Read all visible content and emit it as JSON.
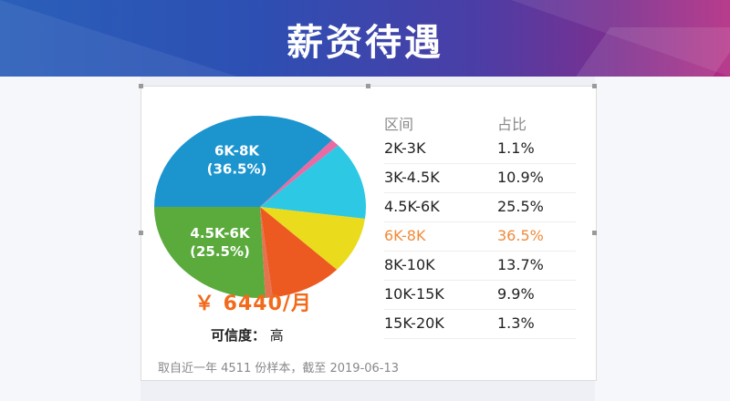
{
  "banner": {
    "title": "薪资待遇"
  },
  "salary": {
    "amount": "￥ 6440/月"
  },
  "credibility": {
    "label": "可信度：",
    "value": "高"
  },
  "footnote": "取自近一年 4511 份样本，截至 2019-06-13",
  "table": {
    "headers": {
      "range": "区间",
      "share": "占比"
    },
    "highlight_color": "#f08a3a"
  },
  "chart_data": {
    "type": "pie",
    "title": "",
    "slices": [
      {
        "label": "2K-3K",
        "value": 1.1,
        "percent_text": "1.1%",
        "color": "#e5734f"
      },
      {
        "label": "3K-4.5K",
        "value": 10.9,
        "percent_text": "10.9%",
        "color": "#ec5a22"
      },
      {
        "label": "4.5K-6K",
        "value": 25.5,
        "percent_text": "25.5%",
        "color": "#5aaa3c",
        "pie_label": [
          "4.5K-6K",
          "(25.5%)"
        ]
      },
      {
        "label": "6K-8K",
        "value": 36.5,
        "percent_text": "36.5%",
        "color": "#1c95cf",
        "pie_label": [
          "6K-8K",
          "(36.5%)"
        ],
        "highlight": true
      },
      {
        "label": "8K-10K",
        "value": 13.7,
        "percent_text": "13.7%",
        "color": "#2cc8e4"
      },
      {
        "label": "10K-15K",
        "value": 9.9,
        "percent_text": "9.9%",
        "color": "#eadb1d"
      },
      {
        "label": "15K-20K",
        "value": 1.3,
        "percent_text": "1.3%",
        "color": "#ea6aa3"
      }
    ],
    "pie_order": [
      "6K-8K",
      "15K-20K",
      "8K-10K",
      "10K-15K",
      "3K-4.5K",
      "2K-3K",
      "4.5K-6K"
    ]
  }
}
